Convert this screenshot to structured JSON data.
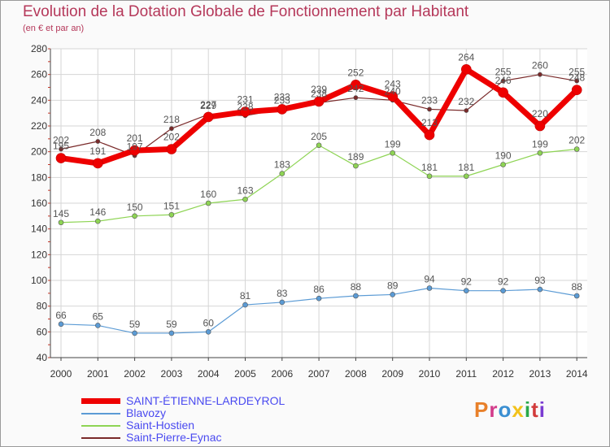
{
  "header": {
    "title": "Evolution de la Dotation Globale de Fonctionnement par Habitant",
    "subtitle": "(en € et par an)"
  },
  "brand": {
    "text": "Proxiti",
    "colors": [
      "#e8802a",
      "#d23b8a",
      "#3b8fd2",
      "#f2c21b",
      "#2aa84a",
      "#d23b3b",
      "#7a3bd2"
    ]
  },
  "chart_data": {
    "type": "line",
    "title": "Evolution de la Dotation Globale de Fonctionnement par Habitant",
    "ylabel": "(en € et par an)",
    "x": [
      "2000",
      "2001",
      "2002",
      "2003",
      "2004",
      "2005",
      "2006",
      "2007",
      "2008",
      "2009",
      "2010",
      "2011",
      "2012",
      "2013",
      "2014"
    ],
    "ylim": [
      40,
      280
    ],
    "yticks": [
      40,
      60,
      80,
      100,
      120,
      140,
      160,
      180,
      200,
      220,
      240,
      260,
      280
    ],
    "grid": true,
    "legend_position": "bottom-left",
    "series": [
      {
        "name": "Saint-Pierre-Eynac",
        "color": "#7a2a2a",
        "width": 1.2,
        "marker": 2.6,
        "label_dy": -7,
        "values": [
          202,
          208,
          197,
          218,
          229,
          228,
          233,
          238,
          242,
          240,
          233,
          232,
          255,
          260,
          255
        ],
        "labels": [
          "202",
          "208",
          "197",
          "218",
          "229",
          "228",
          "233",
          "238",
          "242",
          "240",
          "233",
          "232",
          "255",
          "260",
          "255"
        ]
      },
      {
        "name": "Saint-Hostien",
        "color": "#8ed454",
        "width": 1.2,
        "marker": 3,
        "label_dy": -7,
        "values": [
          145,
          146,
          150,
          151,
          160,
          163,
          183,
          205,
          189,
          199,
          181,
          181,
          190,
          199,
          202
        ],
        "labels": [
          "145",
          "146",
          "150",
          "151",
          "160",
          "163",
          "183",
          "205",
          "189",
          "199",
          "181",
          "181",
          "190",
          "199",
          "202"
        ]
      },
      {
        "name": "Blavozy",
        "color": "#5b9bd5",
        "width": 1.2,
        "marker": 3,
        "label_dy": -7,
        "values": [
          66,
          65,
          59,
          59,
          60,
          81,
          83,
          86,
          88,
          89,
          94,
          92,
          92,
          93,
          88
        ],
        "labels": [
          "66",
          "65",
          "59",
          "59",
          "60",
          "81",
          "83",
          "86",
          "88",
          "89",
          "94",
          "92",
          "92",
          "93",
          "88"
        ]
      },
      {
        "name": "SAINT-ÉTIENNE-LARDEYROL",
        "color": "#ee0000",
        "width": 7,
        "marker": 6,
        "label_dy": -11,
        "values": [
          195,
          191,
          201,
          202,
          227,
          231,
          233,
          239,
          252,
          243,
          213,
          264,
          246,
          220,
          248
        ],
        "labels": [
          "195",
          "191",
          "201",
          "202",
          "227",
          "231",
          "233",
          "239",
          "252",
          "243",
          "213",
          "264",
          "246",
          "220",
          "248"
        ]
      }
    ],
    "legend": [
      "SAINT-ÉTIENNE-LARDEYROL",
      "Blavozy",
      "Saint-Hostien",
      "Saint-Pierre-Eynac"
    ]
  }
}
